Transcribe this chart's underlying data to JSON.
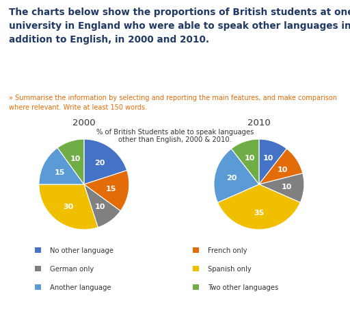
{
  "title_line1": "The charts below show the proportions of British students at one",
  "title_line2": "university in England who were able to speak other languages in",
  "title_line3": "addition to English, in 2000 and 2010.",
  "subtitle_line1": "» Summarise the information by selecting and reporting the main features, and make comparison",
  "subtitle_line2": "where relevant. Write at least 150 words.",
  "chart_title": "% of British Students able to speak languages\nother than English, 2000 & 2010.",
  "year_2000_label": "2000",
  "year_2010_label": "2010",
  "categories": [
    "No other language",
    "French only",
    "German only",
    "Spanish only",
    "Another language",
    "Two other languages"
  ],
  "colors": [
    "#4472C4",
    "#E36C09",
    "#808080",
    "#F0C000",
    "#5B9BD5",
    "#70AD47"
  ],
  "values_2000": [
    20,
    15,
    10,
    30,
    15,
    10
  ],
  "values_2010": [
    10,
    10,
    10,
    35,
    20,
    10
  ],
  "labels_2000": [
    "20",
    "15",
    "10",
    "30",
    "15",
    "10"
  ],
  "labels_2010": [
    "10",
    "10",
    "10",
    "35",
    "20",
    "10"
  ],
  "startangle": 90,
  "bg_color": "#FFFFFF",
  "title_color": "#1F3864",
  "subtitle_color": "#E36C09",
  "legend_color": "#333333",
  "chart_title_color": "#333333"
}
